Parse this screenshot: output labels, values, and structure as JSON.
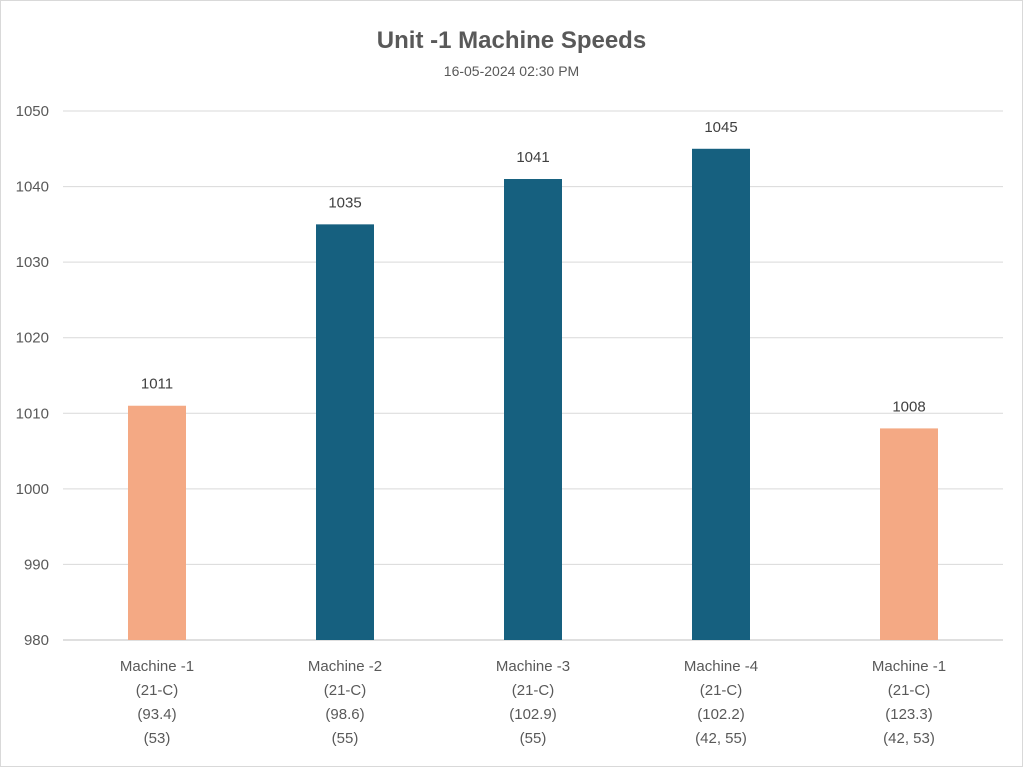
{
  "chart_data": {
    "type": "bar",
    "title": "Unit -1 Machine Speeds",
    "subtitle": "16-05-2024 02:30 PM",
    "xlabel": "",
    "ylabel": "",
    "ylim": [
      980,
      1050
    ],
    "y_ticks": [
      980,
      990,
      1000,
      1010,
      1020,
      1030,
      1040,
      1050
    ],
    "grid": true,
    "categories": [
      [
        "Machine -1",
        "(21-C)",
        "(93.4)",
        "(53)"
      ],
      [
        "Machine -2",
        "(21-C)",
        "(98.6)",
        "(55)"
      ],
      [
        "Machine -3",
        "(21-C)",
        "(102.9)",
        "(55)"
      ],
      [
        "Machine -4",
        "(21-C)",
        "(102.2)",
        "(42, 55)"
      ],
      [
        "Machine -1",
        "(21-C)",
        "(123.3)",
        "(42, 53)"
      ]
    ],
    "values": [
      1011,
      1035,
      1041,
      1045,
      1008
    ],
    "bar_colors": [
      "#f4a984",
      "#16607f",
      "#16607f",
      "#16607f",
      "#f4a984"
    ],
    "grid_color": "#d9d9d9",
    "axis_color": "#bfbfbf"
  }
}
